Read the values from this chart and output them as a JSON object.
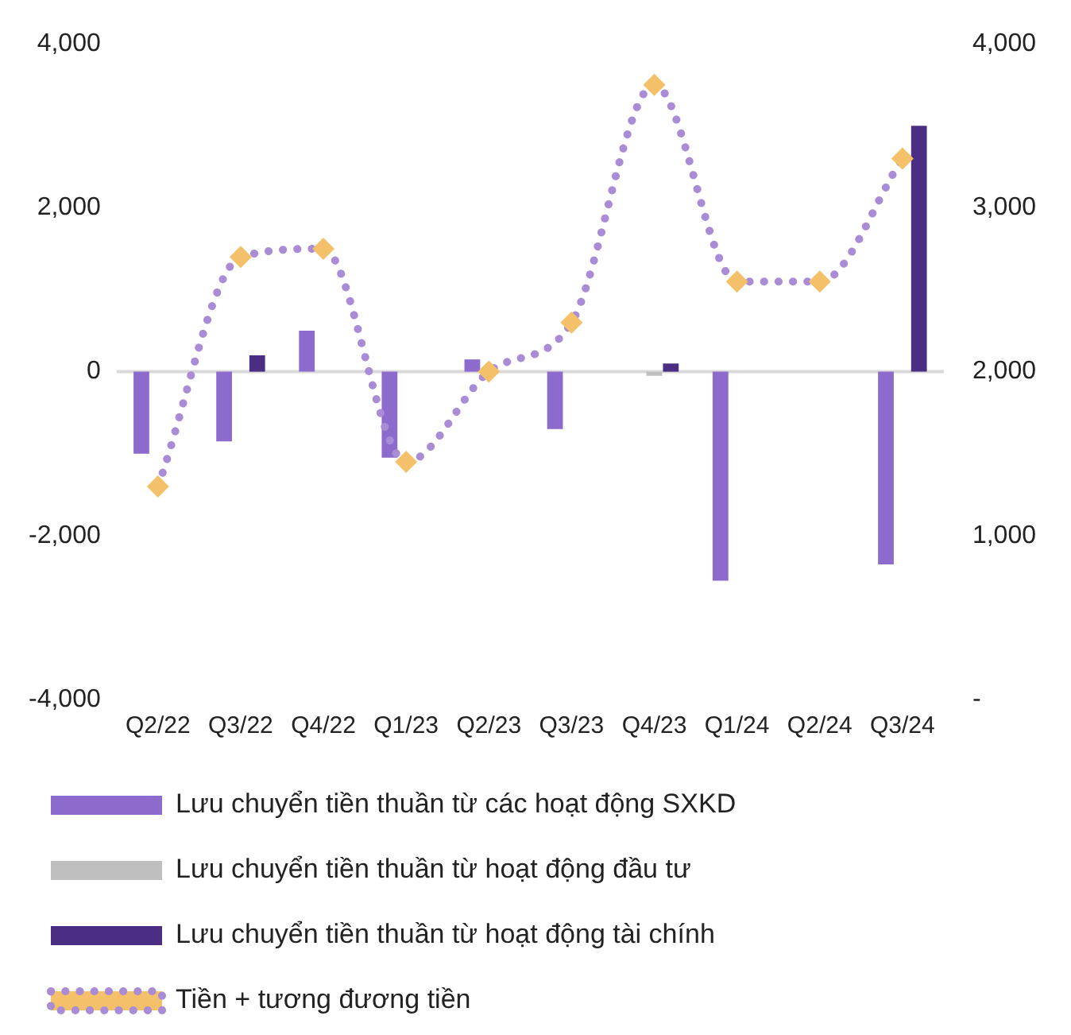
{
  "chart_data": {
    "type": "bar",
    "categories": [
      "Q2/22",
      "Q3/22",
      "Q4/22",
      "Q1/23",
      "Q2/23",
      "Q3/23",
      "Q4/23",
      "Q1/24",
      "Q2/24",
      "Q3/24"
    ],
    "series": [
      {
        "name": "Lưu chuyển tiền thuần từ các hoạt động SXKD",
        "color": "#8c6bcc",
        "values": [
          -1000,
          -850,
          500,
          -1050,
          150,
          -700,
          0,
          -2550,
          0,
          -2350
        ]
      },
      {
        "name": "Lưu chuyển tiền thuần từ hoạt động đầu tư",
        "color": "#bfbfbf",
        "values": [
          0,
          0,
          0,
          0,
          null,
          0,
          -50,
          0,
          null,
          0
        ]
      },
      {
        "name": "Lưu chuyển tiền thuần từ hoạt động tài chính",
        "color": "#4b2e83",
        "values": [
          0,
          200,
          0,
          0,
          0,
          0,
          100,
          0,
          0,
          3000
        ]
      },
      {
        "name": "Tiền + tương đương tiền",
        "type": "line",
        "axis": "y2",
        "color": "#a98bd6",
        "marker": "diamond",
        "line_style": "dotted",
        "values": [
          1300,
          2700,
          2750,
          1450,
          2000,
          2300,
          3750,
          2550,
          2550,
          3300
        ]
      }
    ],
    "ylim": [
      -4000,
      4000
    ],
    "yticks": [
      {
        "value": -4000,
        "label": "-4,000"
      },
      {
        "value": -2000,
        "label": "-2,000"
      },
      0,
      {
        "value": 2000,
        "label": "2,000"
      },
      {
        "value": 4000,
        "label": "4,000"
      }
    ],
    "y2lim": [
      0,
      4000
    ],
    "y2ticks": [
      {
        "value": 0,
        "label": "-"
      },
      {
        "value": 1000,
        "label": "1,000"
      },
      {
        "value": 2000,
        "label": "2,000"
      },
      {
        "value": 3000,
        "label": "3,000"
      },
      {
        "value": 4000,
        "label": "4,000"
      }
    ],
    "ref_lines": [
      {
        "axis": "y",
        "value": 0,
        "color": "#d9d9d9"
      }
    ],
    "grid": false,
    "legend": "bottom"
  }
}
